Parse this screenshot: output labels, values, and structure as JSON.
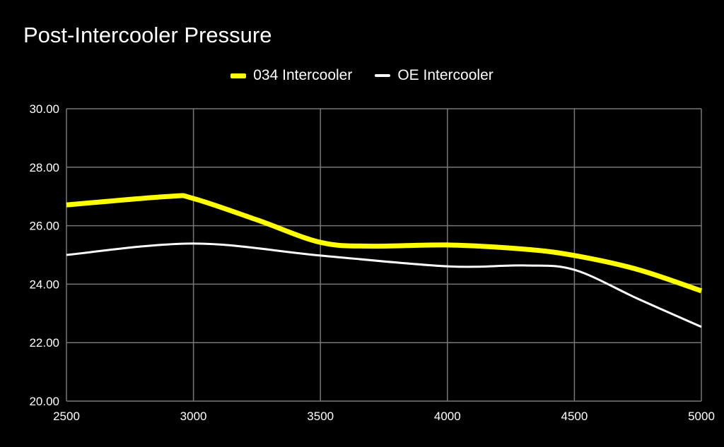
{
  "chart_data": {
    "type": "line",
    "title": "Post-Intercooler Pressure",
    "xlabel": "",
    "ylabel": "",
    "xlim": [
      2500,
      5000
    ],
    "ylim": [
      20,
      30
    ],
    "xticks": [
      "2500",
      "3000",
      "3500",
      "4000",
      "4500",
      "5000"
    ],
    "yticks": [
      "20.00",
      "22.00",
      "24.00",
      "26.00",
      "28.00",
      "30.00"
    ],
    "grid": true,
    "legend_position": "top",
    "series": [
      {
        "name": "034 Intercooler",
        "color": "#ffff00",
        "x": [
          2500,
          2900,
          3000,
          3250,
          3500,
          3700,
          4000,
          4300,
          4500,
          4750,
          5000
        ],
        "y": [
          26.71,
          27.0,
          26.93,
          26.2,
          25.43,
          25.3,
          25.34,
          25.2,
          24.98,
          24.5,
          23.77
        ]
      },
      {
        "name": "OE Intercooler",
        "color": "#ffffff",
        "x": [
          2500,
          3000,
          3500,
          4000,
          4300,
          4500,
          4750,
          5000
        ],
        "y": [
          25.0,
          25.39,
          24.98,
          24.61,
          24.64,
          24.49,
          23.5,
          22.54
        ]
      }
    ]
  }
}
